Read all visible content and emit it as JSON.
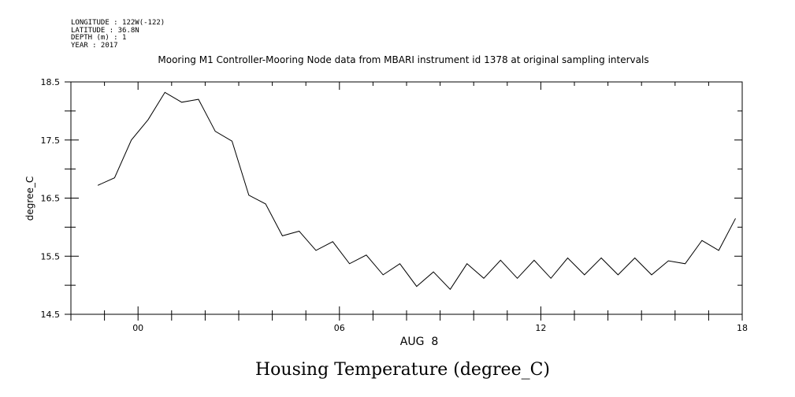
{
  "header": {
    "longitude": "LONGITUDE : 122W(-122)",
    "latitude": "LATITUDE : 36.8N",
    "depth": "DEPTH (m) : 1",
    "year": "YEAR : 2017"
  },
  "chart_data": {
    "type": "line",
    "title": "Mooring M1 Controller-Mooring Node data from MBARI instrument id 1378 at original sampling intervals",
    "xlabel": "AUG  8",
    "ylabel": "degree_C",
    "caption": "Housing Temperature (degree_C)",
    "xlim": [
      -2,
      18
    ],
    "ylim": [
      14.5,
      18.5
    ],
    "x_ticks": [
      "00",
      "06",
      "12",
      "18"
    ],
    "y_ticks": [
      "14.5",
      "15.5",
      "16.5",
      "17.5",
      "18.5"
    ],
    "grid": false,
    "series": [
      {
        "x": [
          -1.2,
          -0.7,
          -0.2,
          0.3,
          0.8,
          1.3,
          1.8,
          2.3,
          2.8,
          3.3,
          3.8,
          4.3,
          4.8,
          5.3,
          5.8,
          6.3,
          6.8,
          7.3,
          7.8,
          8.3,
          8.8,
          9.3,
          9.8,
          10.3,
          10.8,
          11.3,
          11.8,
          12.3,
          12.8,
          13.3,
          13.8,
          14.3,
          14.8,
          15.3,
          15.8,
          16.3,
          16.8,
          17.3,
          17.8
        ],
        "y": [
          16.72,
          16.85,
          17.5,
          17.85,
          18.32,
          18.15,
          18.2,
          17.65,
          17.48,
          16.55,
          16.4,
          15.85,
          15.93,
          15.6,
          15.75,
          15.37,
          15.52,
          15.18,
          15.37,
          14.98,
          15.23,
          14.93,
          15.37,
          15.12,
          15.43,
          15.12,
          15.43,
          15.12,
          15.47,
          15.18,
          15.47,
          15.18,
          15.47,
          15.18,
          15.42,
          15.37,
          15.77,
          15.6,
          16.15
        ]
      }
    ]
  }
}
